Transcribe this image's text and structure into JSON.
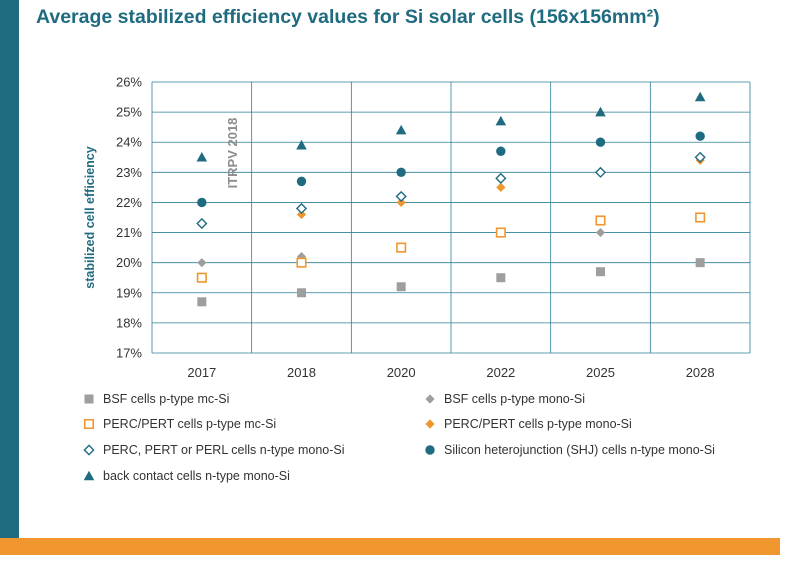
{
  "title": "Average stabilized efficiency values for Si solar cells (156x156mm²)",
  "colors": {
    "side_bar": "#1f6b80",
    "bottom_bar": "#f0962e",
    "grid": "#2e7f96",
    "axis_text": "#333333",
    "ylabel": "#1f6b80",
    "watermark": "#8c8c8c"
  },
  "chart_data": {
    "type": "scatter",
    "title": "Average stabilized efficiency values for Si solar cells (156x156mm²)",
    "xlabel": "",
    "ylabel": "stabilized cell efficiency",
    "categories": [
      "2017",
      "2018",
      "2020",
      "2022",
      "2025",
      "2028"
    ],
    "yticks": [
      "17%",
      "18%",
      "19%",
      "20%",
      "21%",
      "22%",
      "23%",
      "24%",
      "25%",
      "26%"
    ],
    "ylim": [
      17,
      26
    ],
    "grid": true,
    "watermark": "ITRPV 2018",
    "legend_position": "bottom",
    "series": [
      {
        "name": "BSF cells p-type mc-Si",
        "marker": "square",
        "color": "#9e9e9e",
        "fill": true,
        "values": [
          18.7,
          19.0,
          19.2,
          19.5,
          19.7,
          20.0
        ]
      },
      {
        "name": "BSF cells p-type mono-Si",
        "marker": "diamond",
        "color": "#9e9e9e",
        "fill": true,
        "values": [
          20.0,
          20.2,
          20.5,
          21.0,
          21.0,
          21.5
        ]
      },
      {
        "name": "PERC/PERT cells p-type mc-Si",
        "marker": "square",
        "color": "#f0962e",
        "fill": false,
        "values": [
          19.5,
          20.0,
          20.5,
          21.0,
          21.4,
          21.5
        ]
      },
      {
        "name": "PERC/PERT cells p-type mono-Si",
        "marker": "diamond",
        "color": "#f0962e",
        "fill": true,
        "values": [
          21.3,
          21.6,
          22.0,
          22.5,
          23.0,
          23.4
        ]
      },
      {
        "name": "PERC, PERT or PERL cells n-type mono-Si",
        "marker": "diamond",
        "color": "#1f6b80",
        "fill": false,
        "values": [
          21.3,
          21.8,
          22.2,
          22.8,
          23.0,
          23.5
        ]
      },
      {
        "name": "Silicon heterojunction (SHJ) cells n-type mono-Si",
        "marker": "circle",
        "color": "#1f6b80",
        "fill": true,
        "values": [
          22.0,
          22.7,
          23.0,
          23.7,
          24.0,
          24.2
        ]
      },
      {
        "name": "back contact cells n-type mono-Si",
        "marker": "triangle",
        "color": "#1f6b80",
        "fill": true,
        "values": [
          23.5,
          23.9,
          24.4,
          24.7,
          25.0,
          25.5
        ]
      }
    ]
  }
}
